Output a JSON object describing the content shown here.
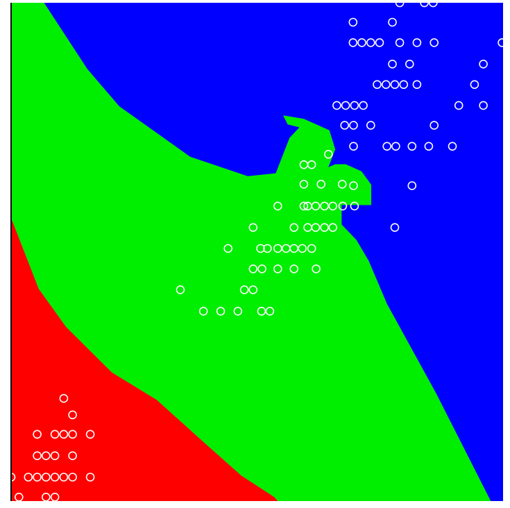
{
  "chart_data": {
    "type": "scatter",
    "title": "",
    "xlabel": "",
    "ylabel": "",
    "xlim": [
      0,
      100
    ],
    "ylim": [
      0,
      100
    ],
    "grid": false,
    "legend": "none",
    "colors": {
      "background": "#ffffff",
      "region_class_0": "#ff0000",
      "region_class_1": "#00ee00",
      "region_class_2": "#0000ff",
      "marker": "#ffffff",
      "frame": "#000000"
    },
    "regions": [
      {
        "class": 2,
        "color": "#0000ff",
        "polygon": [
          [
            0,
            100
          ],
          [
            100,
            100
          ],
          [
            100,
            0
          ],
          [
            97.5,
            0
          ],
          [
            86.4,
            21.6
          ],
          [
            76.4,
            39.6
          ],
          [
            72.7,
            48.2
          ],
          [
            70.2,
            52.4
          ],
          [
            67.2,
            55.5
          ],
          [
            67.2,
            59.4
          ],
          [
            69.8,
            59.4
          ],
          [
            73.2,
            59.4
          ],
          [
            73.2,
            63.5
          ],
          [
            71.2,
            66.2
          ],
          [
            68.0,
            67.6
          ],
          [
            65.9,
            67.6
          ],
          [
            64.5,
            67.0
          ],
          [
            65.9,
            70.6
          ],
          [
            64.7,
            74.4
          ],
          [
            59.5,
            76.7
          ],
          [
            55.3,
            77.4
          ],
          [
            56.2,
            75.6
          ],
          [
            58.6,
            75.0
          ],
          [
            56.6,
            72.9
          ],
          [
            53.8,
            65.8
          ],
          [
            48.1,
            65.2
          ],
          [
            36.4,
            69.1
          ],
          [
            29.0,
            74.3
          ],
          [
            22.0,
            79.2
          ],
          [
            15.5,
            86.7
          ],
          [
            6.7,
            100
          ]
        ]
      },
      {
        "class": 0,
        "color": "#ff0000",
        "polygon": [
          [
            0,
            56.8
          ],
          [
            0,
            0
          ],
          [
            54.2,
            0
          ],
          [
            53.5,
            0.8
          ],
          [
            46.8,
            5.1
          ],
          [
            38.7,
            12.2
          ],
          [
            29.6,
            20.3
          ],
          [
            20.5,
            25.8
          ],
          [
            11.2,
            34.9
          ],
          [
            5.6,
            42.6
          ],
          [
            0,
            56.8
          ]
        ]
      }
    ],
    "series": [
      {
        "class": 1,
        "marker": "hollow-circle",
        "points": [
          [
            61.1,
            67.5
          ],
          [
            64.5,
            69.6
          ],
          [
            59.5,
            63.6
          ],
          [
            63.0,
            63.6
          ],
          [
            67.3,
            63.6
          ],
          [
            54.2,
            59.2
          ],
          [
            59.5,
            59.2
          ],
          [
            60.3,
            59.2
          ],
          [
            61.9,
            59.2
          ],
          [
            63.7,
            59.2
          ],
          [
            65.4,
            59.2
          ],
          [
            67.4,
            59.2
          ],
          [
            69.8,
            59.2
          ],
          [
            49.2,
            54.9
          ],
          [
            57.5,
            54.9
          ],
          [
            60.3,
            54.9
          ],
          [
            61.9,
            54.9
          ],
          [
            63.7,
            54.9
          ],
          [
            65.4,
            54.9
          ],
          [
            44.1,
            50.7
          ],
          [
            50.7,
            50.7
          ],
          [
            52.1,
            50.7
          ],
          [
            54.2,
            50.7
          ],
          [
            55.9,
            50.7
          ],
          [
            57.5,
            50.7
          ],
          [
            59.2,
            50.7
          ],
          [
            61.1,
            50.7
          ],
          [
            49.2,
            46.6
          ],
          [
            51.0,
            46.6
          ],
          [
            54.2,
            46.6
          ],
          [
            57.5,
            46.6
          ],
          [
            62.0,
            46.6
          ],
          [
            34.4,
            42.4
          ],
          [
            47.4,
            42.4
          ],
          [
            49.2,
            42.4
          ],
          [
            39.1,
            38.1
          ],
          [
            42.6,
            38.1
          ],
          [
            46.1,
            38.1
          ],
          [
            50.9,
            38.1
          ],
          [
            52.6,
            38.1
          ]
        ]
      },
      {
        "class": 0,
        "marker": "hollow-circle",
        "points": [
          [
            10.7,
            20.6
          ],
          [
            12.5,
            17.3
          ],
          [
            5.3,
            13.4
          ],
          [
            8.9,
            13.4
          ],
          [
            10.7,
            13.4
          ],
          [
            12.5,
            13.4
          ],
          [
            16.1,
            13.4
          ],
          [
            5.3,
            9.1
          ],
          [
            7.1,
            9.1
          ],
          [
            8.9,
            9.1
          ],
          [
            12.5,
            9.1
          ],
          [
            0,
            4.8
          ],
          [
            3.5,
            4.8
          ],
          [
            5.3,
            4.8
          ],
          [
            7.1,
            4.8
          ],
          [
            8.9,
            4.8
          ],
          [
            10.7,
            4.8
          ],
          [
            12.5,
            4.8
          ],
          [
            16.1,
            4.8
          ],
          [
            1.6,
            0.8
          ],
          [
            7.1,
            0.8
          ],
          [
            8.9,
            0.8
          ]
        ]
      },
      {
        "class": 2,
        "marker": "hollow-circle",
        "points": [
          [
            79.0,
            100
          ],
          [
            84.0,
            100
          ],
          [
            85.8,
            100
          ],
          [
            69.5,
            96.1
          ],
          [
            77.5,
            96.1
          ],
          [
            69.5,
            92.0
          ],
          [
            71.3,
            92.0
          ],
          [
            73.1,
            92.0
          ],
          [
            74.9,
            92.0
          ],
          [
            79.0,
            92.0
          ],
          [
            82.5,
            92.0
          ],
          [
            86.0,
            92.0
          ],
          [
            99.8,
            92.0
          ],
          [
            77.5,
            87.7
          ],
          [
            81.0,
            87.7
          ],
          [
            96.0,
            87.7
          ],
          [
            74.4,
            83.6
          ],
          [
            76.2,
            83.6
          ],
          [
            78.0,
            83.6
          ],
          [
            79.8,
            83.6
          ],
          [
            82.5,
            83.6
          ],
          [
            94.2,
            83.6
          ],
          [
            66.2,
            79.4
          ],
          [
            68.0,
            79.4
          ],
          [
            69.8,
            79.4
          ],
          [
            71.6,
            79.4
          ],
          [
            91.0,
            79.4
          ],
          [
            96.0,
            79.4
          ],
          [
            67.8,
            75.4
          ],
          [
            69.6,
            75.4
          ],
          [
            73.1,
            75.4
          ],
          [
            86.0,
            75.4
          ],
          [
            76.4,
            71.2
          ],
          [
            78.2,
            71.2
          ],
          [
            81.5,
            71.2
          ],
          [
            84.9,
            71.2
          ],
          [
            89.7,
            71.2
          ],
          [
            69.6,
            71.2
          ],
          [
            59.5,
            67.5
          ],
          [
            81.5,
            63.3
          ],
          [
            69.6,
            63.3
          ],
          [
            78.0,
            54.9
          ]
        ]
      }
    ]
  }
}
